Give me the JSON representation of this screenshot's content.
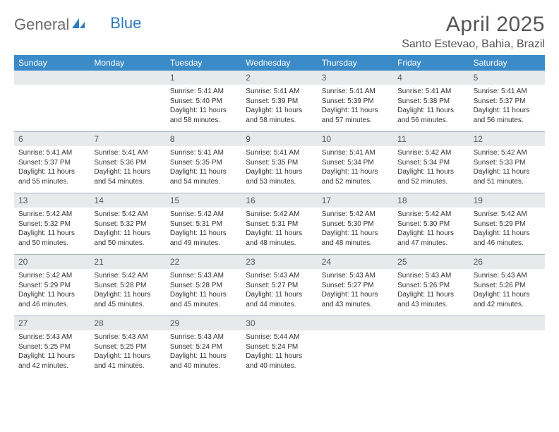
{
  "logo": {
    "text1": "General",
    "text2": "Blue"
  },
  "title": "April 2025",
  "location": "Santo Estevao, Bahia, Brazil",
  "colors": {
    "header_bg": "#3b8bc9",
    "header_text": "#ffffff",
    "daynum_bg": "#e8e9ea",
    "daynum_text": "#4f5962",
    "body_text": "#323232",
    "rule": "#a9b6c2",
    "title_text": "#555555",
    "logo_gray": "#6b6b6b",
    "logo_blue": "#2e7bbf"
  },
  "dayNames": [
    "Sunday",
    "Monday",
    "Tuesday",
    "Wednesday",
    "Thursday",
    "Friday",
    "Saturday"
  ],
  "weeks": [
    [
      null,
      null,
      {
        "n": "1",
        "sr": "5:41 AM",
        "ss": "5:40 PM",
        "dl": "11 hours and 58 minutes."
      },
      {
        "n": "2",
        "sr": "5:41 AM",
        "ss": "5:39 PM",
        "dl": "11 hours and 58 minutes."
      },
      {
        "n": "3",
        "sr": "5:41 AM",
        "ss": "5:39 PM",
        "dl": "11 hours and 57 minutes."
      },
      {
        "n": "4",
        "sr": "5:41 AM",
        "ss": "5:38 PM",
        "dl": "11 hours and 56 minutes."
      },
      {
        "n": "5",
        "sr": "5:41 AM",
        "ss": "5:37 PM",
        "dl": "11 hours and 56 minutes."
      }
    ],
    [
      {
        "n": "6",
        "sr": "5:41 AM",
        "ss": "5:37 PM",
        "dl": "11 hours and 55 minutes."
      },
      {
        "n": "7",
        "sr": "5:41 AM",
        "ss": "5:36 PM",
        "dl": "11 hours and 54 minutes."
      },
      {
        "n": "8",
        "sr": "5:41 AM",
        "ss": "5:35 PM",
        "dl": "11 hours and 54 minutes."
      },
      {
        "n": "9",
        "sr": "5:41 AM",
        "ss": "5:35 PM",
        "dl": "11 hours and 53 minutes."
      },
      {
        "n": "10",
        "sr": "5:41 AM",
        "ss": "5:34 PM",
        "dl": "11 hours and 52 minutes."
      },
      {
        "n": "11",
        "sr": "5:42 AM",
        "ss": "5:34 PM",
        "dl": "11 hours and 52 minutes."
      },
      {
        "n": "12",
        "sr": "5:42 AM",
        "ss": "5:33 PM",
        "dl": "11 hours and 51 minutes."
      }
    ],
    [
      {
        "n": "13",
        "sr": "5:42 AM",
        "ss": "5:32 PM",
        "dl": "11 hours and 50 minutes."
      },
      {
        "n": "14",
        "sr": "5:42 AM",
        "ss": "5:32 PM",
        "dl": "11 hours and 50 minutes."
      },
      {
        "n": "15",
        "sr": "5:42 AM",
        "ss": "5:31 PM",
        "dl": "11 hours and 49 minutes."
      },
      {
        "n": "16",
        "sr": "5:42 AM",
        "ss": "5:31 PM",
        "dl": "11 hours and 48 minutes."
      },
      {
        "n": "17",
        "sr": "5:42 AM",
        "ss": "5:30 PM",
        "dl": "11 hours and 48 minutes."
      },
      {
        "n": "18",
        "sr": "5:42 AM",
        "ss": "5:30 PM",
        "dl": "11 hours and 47 minutes."
      },
      {
        "n": "19",
        "sr": "5:42 AM",
        "ss": "5:29 PM",
        "dl": "11 hours and 46 minutes."
      }
    ],
    [
      {
        "n": "20",
        "sr": "5:42 AM",
        "ss": "5:29 PM",
        "dl": "11 hours and 46 minutes."
      },
      {
        "n": "21",
        "sr": "5:42 AM",
        "ss": "5:28 PM",
        "dl": "11 hours and 45 minutes."
      },
      {
        "n": "22",
        "sr": "5:43 AM",
        "ss": "5:28 PM",
        "dl": "11 hours and 45 minutes."
      },
      {
        "n": "23",
        "sr": "5:43 AM",
        "ss": "5:27 PM",
        "dl": "11 hours and 44 minutes."
      },
      {
        "n": "24",
        "sr": "5:43 AM",
        "ss": "5:27 PM",
        "dl": "11 hours and 43 minutes."
      },
      {
        "n": "25",
        "sr": "5:43 AM",
        "ss": "5:26 PM",
        "dl": "11 hours and 43 minutes."
      },
      {
        "n": "26",
        "sr": "5:43 AM",
        "ss": "5:26 PM",
        "dl": "11 hours and 42 minutes."
      }
    ],
    [
      {
        "n": "27",
        "sr": "5:43 AM",
        "ss": "5:25 PM",
        "dl": "11 hours and 42 minutes."
      },
      {
        "n": "28",
        "sr": "5:43 AM",
        "ss": "5:25 PM",
        "dl": "11 hours and 41 minutes."
      },
      {
        "n": "29",
        "sr": "5:43 AM",
        "ss": "5:24 PM",
        "dl": "11 hours and 40 minutes."
      },
      {
        "n": "30",
        "sr": "5:44 AM",
        "ss": "5:24 PM",
        "dl": "11 hours and 40 minutes."
      },
      null,
      null,
      null
    ]
  ],
  "labels": {
    "sunrise": "Sunrise:",
    "sunset": "Sunset:",
    "daylight": "Daylight:"
  }
}
